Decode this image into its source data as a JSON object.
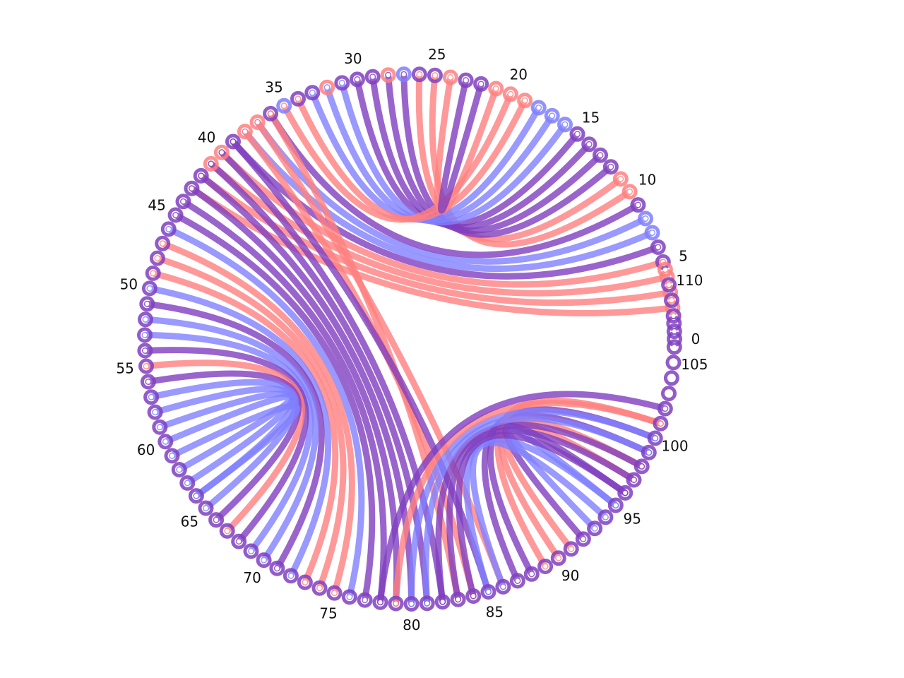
{
  "diagram": {
    "type": "circular-arc-diagram",
    "node_count": 112,
    "tick_labels": [
      "0",
      "5",
      "10",
      "15",
      "20",
      "25",
      "30",
      "35",
      "40",
      "45",
      "50",
      "55",
      "60",
      "65",
      "70",
      "75",
      "80",
      "85",
      "90",
      "95",
      "100",
      "105",
      "110"
    ],
    "colors": {
      "red": "#ff7f7f",
      "blue": "#7f7fff",
      "purple": "#7f3fbf"
    },
    "links": [
      {
        "a": 2,
        "b": 43,
        "c": "red"
      },
      {
        "a": 3,
        "b": 42,
        "c": "red"
      },
      {
        "a": 4,
        "b": 41,
        "c": "red"
      },
      {
        "a": 5,
        "b": 40,
        "c": "red"
      },
      {
        "a": 6,
        "b": 39,
        "c": "purple"
      },
      {
        "a": 7,
        "b": 38,
        "c": "blue"
      },
      {
        "a": 8,
        "b": 37,
        "c": "blue"
      },
      {
        "a": 9,
        "b": 36,
        "c": "purple"
      },
      {
        "a": 10,
        "b": 25,
        "c": "red"
      },
      {
        "a": 11,
        "b": 26,
        "c": "red"
      },
      {
        "a": 12,
        "b": 27,
        "c": "purple"
      },
      {
        "a": 13,
        "b": 28,
        "c": "purple"
      },
      {
        "a": 14,
        "b": 29,
        "c": "purple"
      },
      {
        "a": 15,
        "b": 30,
        "c": "purple"
      },
      {
        "a": 16,
        "b": 31,
        "c": "blue"
      },
      {
        "a": 17,
        "b": 32,
        "c": "blue"
      },
      {
        "a": 18,
        "b": 33,
        "c": "blue"
      },
      {
        "a": 19,
        "b": 34,
        "c": "red"
      },
      {
        "a": 20,
        "b": 35,
        "c": "red"
      },
      {
        "a": 21,
        "b": 24,
        "c": "red"
      },
      {
        "a": 22,
        "b": 23,
        "c": "purple"
      },
      {
        "a": 36,
        "b": 83,
        "c": "red"
      },
      {
        "a": 37,
        "b": 86,
        "c": "red"
      },
      {
        "a": 38,
        "b": 84,
        "c": "red"
      },
      {
        "a": 39,
        "b": 85,
        "c": "purple"
      },
      {
        "a": 40,
        "b": 82,
        "c": "purple"
      },
      {
        "a": 41,
        "b": 81,
        "c": "purple"
      },
      {
        "a": 42,
        "b": 80,
        "c": "purple"
      },
      {
        "a": 43,
        "b": 79,
        "c": "purple"
      },
      {
        "a": 44,
        "b": 78,
        "c": "purple"
      },
      {
        "a": 45,
        "b": 77,
        "c": "purple"
      },
      {
        "a": 46,
        "b": 76,
        "c": "blue"
      },
      {
        "a": 47,
        "b": 75,
        "c": "red"
      },
      {
        "a": 48,
        "b": 74,
        "c": "red"
      },
      {
        "a": 49,
        "b": 73,
        "c": "red"
      },
      {
        "a": 50,
        "b": 72,
        "c": "blue"
      },
      {
        "a": 51,
        "b": 71,
        "c": "purple"
      },
      {
        "a": 52,
        "b": 70,
        "c": "blue"
      },
      {
        "a": 53,
        "b": 69,
        "c": "blue"
      },
      {
        "a": 54,
        "b": 68,
        "c": "purple"
      },
      {
        "a": 55,
        "b": 67,
        "c": "red"
      },
      {
        "a": 56,
        "b": 66,
        "c": "purple"
      },
      {
        "a": 57,
        "b": 65,
        "c": "blue"
      },
      {
        "a": 58,
        "b": 64,
        "c": "blue"
      },
      {
        "a": 59,
        "b": 63,
        "c": "blue"
      },
      {
        "a": 60,
        "b": 62,
        "c": "blue"
      },
      {
        "a": 61,
        "b": 64,
        "c": "blue"
      },
      {
        "a": 87,
        "b": 100,
        "c": "purple"
      },
      {
        "a": 88,
        "b": 99,
        "c": "purple"
      },
      {
        "a": 89,
        "b": 101,
        "c": "red"
      },
      {
        "a": 90,
        "b": 98,
        "c": "red"
      },
      {
        "a": 91,
        "b": 97,
        "c": "red"
      },
      {
        "a": 92,
        "b": 96,
        "c": "purple"
      },
      {
        "a": 93,
        "b": 95,
        "c": "blue"
      },
      {
        "a": 86,
        "b": 94,
        "c": "blue"
      },
      {
        "a": 85,
        "b": 95,
        "c": "blue"
      },
      {
        "a": 84,
        "b": 96,
        "c": "purple"
      },
      {
        "a": 83,
        "b": 97,
        "c": "purple"
      },
      {
        "a": 82,
        "b": 98,
        "c": "purple"
      },
      {
        "a": 81,
        "b": 99,
        "c": "blue"
      },
      {
        "a": 80,
        "b": 100,
        "c": "blue"
      },
      {
        "a": 79,
        "b": 101,
        "c": "red"
      },
      {
        "a": 78,
        "b": 102,
        "c": "purple"
      }
    ],
    "node_colors": {
      "0": "purple",
      "1": "purple",
      "2": "red",
      "3": "red",
      "4": "red",
      "5": "purple",
      "6": "purple",
      "7": "blue",
      "8": "blue",
      "9": "purple",
      "10": "red",
      "11": "red",
      "12": "purple",
      "13": "purple",
      "14": "purple",
      "15": "purple",
      "16": "blue",
      "17": "blue",
      "18": "blue",
      "19": "red",
      "20": "red",
      "21": "red",
      "22": "purple",
      "23": "purple",
      "24": "red",
      "25": "purple",
      "26": "purple",
      "27": "blue",
      "28": "red",
      "29": "purple",
      "30": "purple",
      "31": "purple",
      "32": "red",
      "33": "purple",
      "34": "purple",
      "35": "blue",
      "36": "purple",
      "37": "red",
      "38": "red",
      "39": "purple",
      "40": "red",
      "41": "red",
      "42": "purple",
      "43": "purple",
      "110": "purple",
      "111": "red"
    },
    "default_node_color": "purple"
  }
}
